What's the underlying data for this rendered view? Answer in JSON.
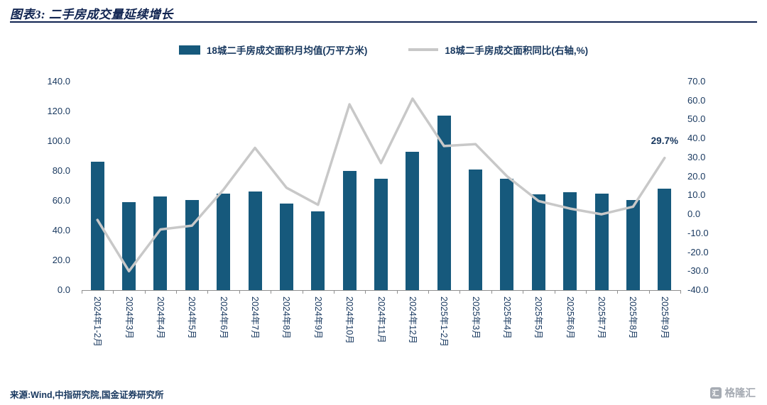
{
  "header": {
    "title": "图表3: 二手房成交量延续增长"
  },
  "legend": [
    {
      "label": "18城二手房成交面积月均值(万平方米)",
      "type": "bar"
    },
    {
      "label": "18城二手房成交面积同比(右轴,%)",
      "type": "line"
    }
  ],
  "colors": {
    "bar": "#16597C",
    "line": "#C8C8C8",
    "text": "#17375E",
    "title": "#0F2350",
    "axis": "#8F8F8F",
    "brand": "#A6ABB3"
  },
  "chart_data": {
    "type": "bar",
    "title": "图表3: 二手房成交量延续增长",
    "categories": [
      "2024年1-2月",
      "2024年3月",
      "2024年4月",
      "2024年5月",
      "2024年6月",
      "2024年7月",
      "2024年8月",
      "2024年9月",
      "2024年10月",
      "2024年11月",
      "2024年12月",
      "2025年1-2月",
      "2025年3月",
      "2025年4月",
      "2025年5月",
      "2025年6月",
      "2025年7月",
      "2025年8月",
      "2025年9月"
    ],
    "series": [
      {
        "name": "18城二手房成交面积月均值(万平方米)",
        "type": "bar",
        "axis": "left",
        "values": [
          86,
          59,
          63,
          60.5,
          65,
          66,
          58,
          53,
          80,
          75,
          93,
          117,
          81,
          75,
          64.5,
          65.5,
          65,
          60.5,
          68
        ]
      },
      {
        "name": "18城二手房成交面积同比(右轴,%)",
        "type": "line",
        "axis": "right",
        "values": [
          -3,
          -30,
          -8,
          -6,
          13,
          35,
          14,
          5,
          58,
          27,
          61,
          36,
          37,
          20,
          7,
          3,
          0,
          4,
          29.7
        ]
      }
    ],
    "left_axis": {
      "min": 0,
      "max": 140,
      "step": 20
    },
    "right_axis": {
      "min": -40,
      "max": 70,
      "step": 10
    },
    "grid": false,
    "legend_position": "top",
    "annotation": {
      "text": "29.7%",
      "series": 1,
      "index": 18
    }
  },
  "footer": {
    "source": "来源:Wind,中指研究院,国金证券研究所"
  },
  "brand": {
    "name": "格隆汇",
    "icon_glyph": "汇"
  }
}
